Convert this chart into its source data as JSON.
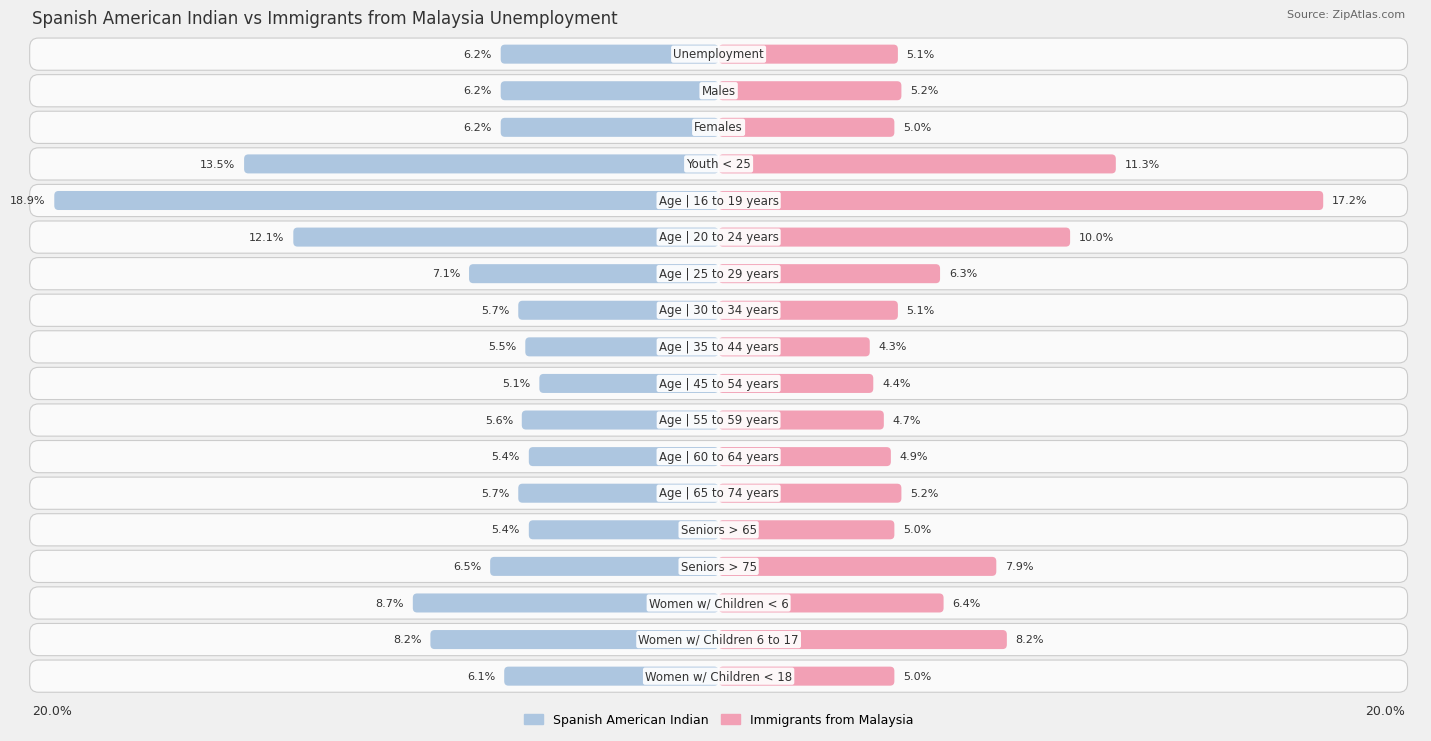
{
  "title": "Spanish American Indian vs Immigrants from Malaysia Unemployment",
  "source": "Source: ZipAtlas.com",
  "categories": [
    "Unemployment",
    "Males",
    "Females",
    "Youth < 25",
    "Age | 16 to 19 years",
    "Age | 20 to 24 years",
    "Age | 25 to 29 years",
    "Age | 30 to 34 years",
    "Age | 35 to 44 years",
    "Age | 45 to 54 years",
    "Age | 55 to 59 years",
    "Age | 60 to 64 years",
    "Age | 65 to 74 years",
    "Seniors > 65",
    "Seniors > 75",
    "Women w/ Children < 6",
    "Women w/ Children 6 to 17",
    "Women w/ Children < 18"
  ],
  "left_values": [
    6.2,
    6.2,
    6.2,
    13.5,
    18.9,
    12.1,
    7.1,
    5.7,
    5.5,
    5.1,
    5.6,
    5.4,
    5.7,
    5.4,
    6.5,
    8.7,
    8.2,
    6.1
  ],
  "right_values": [
    5.1,
    5.2,
    5.0,
    11.3,
    17.2,
    10.0,
    6.3,
    5.1,
    4.3,
    4.4,
    4.7,
    4.9,
    5.2,
    5.0,
    7.9,
    6.4,
    8.2,
    5.0
  ],
  "left_label": "Spanish American Indian",
  "right_label": "Immigrants from Malaysia",
  "left_color": "#adc6e0",
  "right_color": "#f2a0b5",
  "axis_max": 20.0,
  "bg_color": "#f0f0f0",
  "row_bg_color": "#fafafa",
  "title_fontsize": 12,
  "label_fontsize": 8.5,
  "value_fontsize": 8,
  "legend_fontsize": 9
}
